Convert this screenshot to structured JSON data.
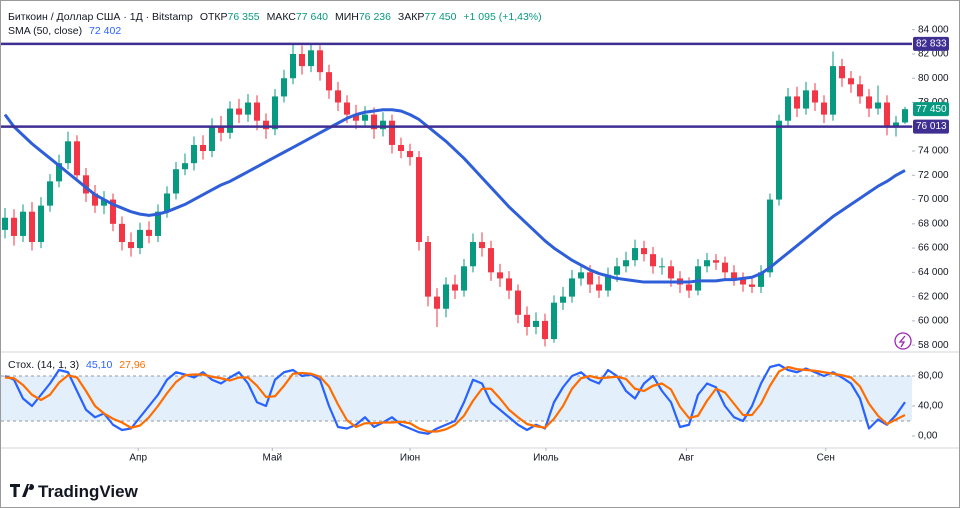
{
  "chart_data": {
    "type": "candlestick",
    "header": {
      "title": "Биткоин / Доллар США · 1Д · Bitstamp",
      "open_label": "ОТКР",
      "open_value": "76 355",
      "high_label": "МАКС",
      "high_value": "77 640",
      "low_label": "МИН",
      "low_value": "76 236",
      "close_label": "ЗАКР",
      "close_value": "77 450",
      "change": "+1 095 (+1,43%)"
    },
    "up_color": "#089981",
    "down_color": "#f23645",
    "open": [
      67500,
      68500,
      67000,
      69000,
      66500,
      69500,
      71500,
      73000,
      74800,
      72000,
      70500,
      69500,
      70000,
      68000,
      66500,
      66000,
      67500,
      67000,
      69000,
      70500,
      72500,
      73000,
      74500,
      74000,
      76000,
      75500,
      77500,
      77000,
      78000,
      76500,
      75800,
      78500,
      80000,
      82000,
      81000,
      82300,
      80500,
      79000,
      78000,
      77000,
      76500,
      77000,
      75800,
      76500,
      74500,
      74000,
      73500,
      66500,
      62000,
      61000,
      63000,
      62500,
      64500,
      66500,
      66000,
      64000,
      63500,
      62500,
      60500,
      59500,
      60000,
      58500,
      61500,
      62000,
      63500,
      64000,
      63000,
      62500,
      63800,
      64500,
      65000,
      66000,
      65500,
      64500,
      64500,
      63500,
      63000,
      62500,
      64500,
      65000,
      64800,
      64000,
      63500,
      63000,
      62800,
      64000,
      70000,
      76500,
      78500,
      77500,
      79000,
      78000,
      77000,
      81000,
      80000,
      79500,
      78500,
      77500,
      78000,
      76000,
      76355
    ],
    "high": [
      69300,
      69200,
      69600,
      69800,
      70200,
      72100,
      73700,
      75600,
      75300,
      72600,
      71200,
      70700,
      70500,
      68600,
      67300,
      68100,
      68200,
      69600,
      71100,
      73100,
      73800,
      75200,
      75300,
      76700,
      76900,
      78100,
      78300,
      78700,
      78600,
      77100,
      79100,
      80700,
      82800,
      82700,
      82900,
      82700,
      81100,
      79700,
      78600,
      77800,
      77700,
      77600,
      77200,
      77000,
      75100,
      74600,
      74000,
      67000,
      62700,
      63600,
      63800,
      65100,
      67200,
      67300,
      66600,
      64700,
      64100,
      63000,
      61200,
      60700,
      60600,
      62100,
      62800,
      64200,
      64700,
      64600,
      63700,
      64400,
      65200,
      65700,
      66700,
      66600,
      66100,
      65200,
      65000,
      64100,
      63600,
      65100,
      65600,
      65500,
      65300,
      64600,
      64000,
      63500,
      64600,
      70500,
      77000,
      79200,
      79300,
      79700,
      79600,
      78600,
      82200,
      81600,
      80600,
      80200,
      79100,
      79400,
      78600,
      76900,
      77640
    ],
    "low": [
      66800,
      66200,
      66500,
      65800,
      66000,
      69000,
      71000,
      72500,
      71500,
      69800,
      68900,
      68800,
      67400,
      65800,
      65300,
      65500,
      66400,
      66500,
      68500,
      70000,
      72000,
      72400,
      73300,
      73500,
      74800,
      75000,
      76300,
      76400,
      75700,
      75000,
      75300,
      78000,
      79500,
      80300,
      80500,
      79800,
      78300,
      77300,
      76300,
      75800,
      76000,
      75000,
      75200,
      73800,
      73400,
      72800,
      65800,
      61200,
      59500,
      60300,
      61800,
      62000,
      64000,
      65300,
      63300,
      62800,
      61800,
      59800,
      58800,
      58900,
      57900,
      58200,
      60900,
      61500,
      62900,
      62300,
      61900,
      62000,
      63200,
      64000,
      64500,
      64900,
      63900,
      63800,
      62800,
      62300,
      61900,
      62100,
      64000,
      64200,
      63400,
      62900,
      62400,
      62300,
      62300,
      63600,
      69500,
      76000,
      76800,
      77000,
      77300,
      76300,
      76500,
      79300,
      78800,
      77900,
      76800,
      77000,
      75300,
      75200,
      76236
    ],
    "close": [
      68500,
      67000,
      69000,
      66500,
      69500,
      71500,
      73000,
      74800,
      72000,
      70500,
      69500,
      70000,
      68000,
      66500,
      66000,
      67500,
      67000,
      69000,
      70500,
      72500,
      73000,
      74500,
      74000,
      76000,
      75500,
      77500,
      77000,
      78000,
      76500,
      75800,
      78500,
      80000,
      82000,
      81000,
      82300,
      80500,
      79000,
      78000,
      77000,
      76500,
      77000,
      75800,
      76500,
      74500,
      74000,
      73500,
      66500,
      62000,
      61000,
      63000,
      62500,
      64500,
      66500,
      66000,
      64000,
      63500,
      62500,
      60500,
      59500,
      60000,
      58500,
      61500,
      62000,
      63500,
      64000,
      63000,
      62500,
      63800,
      64500,
      65000,
      66000,
      65500,
      64500,
      64500,
      63500,
      63000,
      62500,
      64500,
      65000,
      64800,
      64000,
      63500,
      63000,
      62800,
      64000,
      70000,
      76500,
      78500,
      77500,
      79000,
      78000,
      77000,
      81000,
      80000,
      79500,
      78500,
      77500,
      78000,
      76000,
      76355,
      77450
    ],
    "sma": {
      "name": "SMA (50, close)",
      "value_label": "72 402",
      "color": "#2f5fd8",
      "values": [
        77000,
        76000,
        75300,
        74600,
        74000,
        73400,
        72800,
        72200,
        71600,
        71000,
        70400,
        70000,
        69600,
        69300,
        69000,
        68800,
        68700,
        68800,
        69000,
        69300,
        69600,
        70000,
        70400,
        70800,
        71200,
        71500,
        71900,
        72300,
        72700,
        73100,
        73500,
        73900,
        74300,
        74700,
        75100,
        75500,
        75900,
        76300,
        76700,
        77000,
        77200,
        77300,
        77400,
        77400,
        77300,
        77000,
        76600,
        76000,
        75400,
        74800,
        74100,
        73400,
        72600,
        71800,
        71000,
        70200,
        69400,
        68700,
        68000,
        67300,
        66600,
        66000,
        65500,
        65000,
        64600,
        64200,
        63900,
        63700,
        63500,
        63400,
        63300,
        63200,
        63200,
        63200,
        63200,
        63200,
        63200,
        63300,
        63300,
        63300,
        63400,
        63400,
        63500,
        63600,
        63900,
        64400,
        65000,
        65600,
        66200,
        66800,
        67400,
        68000,
        68600,
        69100,
        69600,
        70100,
        70600,
        71100,
        71500,
        72000,
        72402
      ]
    },
    "ylim": [
      57600,
      84800
    ],
    "yticks": [
      {
        "value": 58000,
        "label": "58 000"
      },
      {
        "value": 60000,
        "label": "60 000"
      },
      {
        "value": 62000,
        "label": "62 000"
      },
      {
        "value": 64000,
        "label": "64 000"
      },
      {
        "value": 66000,
        "label": "66 000"
      },
      {
        "value": 68000,
        "label": "68 000"
      },
      {
        "value": 70000,
        "label": "70 000"
      },
      {
        "value": 72000,
        "label": "72 000"
      },
      {
        "value": 74000,
        "label": "74 000"
      },
      {
        "value": 76000,
        "label": "76 000"
      },
      {
        "value": 78000,
        "label": "78 000"
      },
      {
        "value": 80000,
        "label": "80 000"
      },
      {
        "value": 82000,
        "label": "82 000"
      },
      {
        "value": 84000,
        "label": "84 000"
      }
    ],
    "levels": [
      {
        "value": 82833,
        "label": "82 833"
      },
      {
        "value": 76013,
        "label": "76 013"
      }
    ],
    "level_color": "#3f2f92",
    "last_price": {
      "value": 77450,
      "label": "77 450"
    },
    "xticks": [
      {
        "value": 14.8,
        "label": "Апр"
      },
      {
        "value": 29.7,
        "label": "Май"
      },
      {
        "value": 45,
        "label": "Июн"
      },
      {
        "value": 60.1,
        "label": "Июль"
      },
      {
        "value": 75.7,
        "label": "Авг"
      },
      {
        "value": 91.2,
        "label": "Сен"
      }
    ],
    "stoch": {
      "name": "Стох. (14, 1, 3)",
      "ylim": [
        -16,
        108
      ],
      "yticks": [
        {
          "value": 80,
          "label": "80,00"
        },
        {
          "value": 40,
          "label": "40,00"
        },
        {
          "value": 0,
          "label": "0,00"
        }
      ],
      "bands": [
        20,
        80
      ],
      "band_color": "#e3f0fc",
      "k": {
        "value_label": "45,10",
        "color": "#2962ff",
        "values": [
          80,
          75,
          50,
          40,
          55,
          70,
          88,
          85,
          60,
          35,
          25,
          30,
          15,
          8,
          10,
          25,
          40,
          55,
          75,
          85,
          82,
          78,
          85,
          75,
          70,
          78,
          85,
          70,
          45,
          40,
          75,
          85,
          88,
          80,
          82,
          75,
          40,
          12,
          10,
          15,
          25,
          12,
          18,
          25,
          15,
          10,
          5,
          3,
          10,
          15,
          20,
          45,
          75,
          70,
          45,
          35,
          25,
          15,
          8,
          15,
          10,
          45,
          65,
          80,
          85,
          75,
          70,
          88,
          80,
          60,
          50,
          70,
          80,
          60,
          45,
          12,
          15,
          55,
          70,
          65,
          40,
          25,
          20,
          40,
          70,
          92,
          95,
          88,
          85,
          90,
          85,
          80,
          85,
          78,
          70,
          50,
          10,
          22,
          15,
          28,
          45.1
        ]
      },
      "d": {
        "value_label": "27,96",
        "color": "#ff6d00",
        "values": [
          78,
          77,
          68,
          55,
          48,
          55,
          71,
          81,
          78,
          60,
          40,
          30,
          23,
          18,
          11,
          14,
          25,
          40,
          57,
          72,
          81,
          82,
          82,
          79,
          77,
          74,
          78,
          78,
          67,
          52,
          53,
          67,
          83,
          84,
          83,
          79,
          66,
          42,
          21,
          12,
          17,
          17,
          18,
          18,
          19,
          17,
          10,
          6,
          6,
          9,
          15,
          27,
          47,
          63,
          63,
          50,
          35,
          25,
          16,
          13,
          11,
          23,
          40,
          63,
          77,
          80,
          77,
          78,
          79,
          76,
          63,
          60,
          67,
          70,
          62,
          39,
          24,
          27,
          47,
          63,
          58,
          43,
          28,
          28,
          43,
          67,
          86,
          92,
          89,
          88,
          87,
          85,
          83,
          81,
          78,
          66,
          43,
          27,
          16,
          22,
          27.96
        ]
      }
    },
    "brand": "TradingView"
  }
}
